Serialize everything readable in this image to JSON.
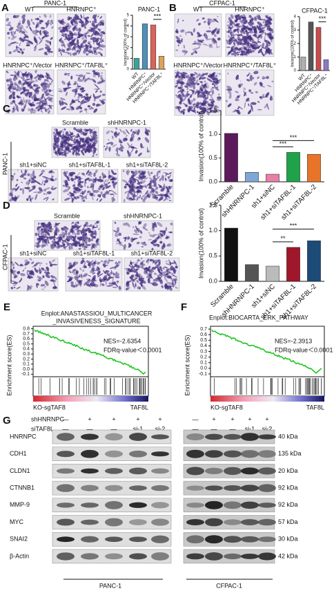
{
  "chart_data": [
    {
      "type": "bar",
      "panel": "A",
      "title": "PANC-1",
      "y_label": "Invasion(100% of control)",
      "categories": [
        "WT",
        "HNRNPC⁺",
        "HNRNPC⁺/Vector",
        "HNRNPC⁺/TAF8L⁺"
      ],
      "values": [
        1.0,
        4.2,
        4.1,
        1.2
      ],
      "colors": [
        "#3aa39a",
        "#4f8fb8",
        "#d9645a",
        "#d9a35a"
      ],
      "ylim": [
        0,
        5
      ],
      "yticks": [
        0,
        1,
        2,
        3,
        4,
        5
      ],
      "annotations": [
        "***"
      ]
    },
    {
      "type": "bar",
      "panel": "B",
      "title": "CFPAC-1",
      "y_label": "Invasion(100% of control)",
      "categories": [
        "WT",
        "HNRNPC⁺",
        "HNRNPC⁺/Vector",
        "HNRNPC⁺/TAF8L⁺"
      ],
      "values": [
        1.0,
        3.6,
        3.2,
        0.8
      ],
      "colors": [
        "#b0b0b0",
        "#555555",
        "#c94b4b",
        "#8a7ac0"
      ],
      "ylim": [
        0,
        4
      ],
      "yticks": [
        0,
        1,
        2,
        3,
        4
      ],
      "annotations": [
        "***"
      ]
    },
    {
      "type": "bar",
      "panel": "C",
      "y_label": "Invasion(100% of control)",
      "categories": [
        "Scramble",
        "shHNRNPC-1",
        "sh1+siNC",
        "sh1+siTAF8L-1",
        "sh1+siTAF8L-2"
      ],
      "values": [
        1.02,
        0.2,
        0.16,
        0.62,
        0.58
      ],
      "colors": [
        "#5c1a5c",
        "#7fa7d6",
        "#e87fa6",
        "#1fa24a",
        "#e8742a"
      ],
      "ylim": [
        0,
        1.5
      ],
      "yticks": [
        {
          "value": 0,
          "label": "0.0"
        },
        0.5,
        {
          "value": 1,
          "label": "1.0"
        },
        1.5
      ],
      "annotations": [
        "***",
        "***"
      ]
    },
    {
      "type": "bar",
      "panel": "D",
      "y_label": "Invasion(100% of control)",
      "categories": [
        "Scramble",
        "shHNRNPC-1",
        "sh1+siNC",
        "sh1+siTAF8L-1",
        "sh1+siTAF8L-2"
      ],
      "values": [
        1.05,
        0.33,
        0.3,
        0.67,
        0.8
      ],
      "colors": [
        "#111111",
        "#555555",
        "#bbbbbb",
        "#a0162a",
        "#1d4b78"
      ],
      "ylim": [
        0,
        1.5
      ],
      "yticks": [
        {
          "value": 0,
          "label": "0.0"
        },
        0.5,
        {
          "value": 1,
          "label": "1.0"
        },
        1.5
      ],
      "annotations": [
        "**",
        "***"
      ]
    }
  ],
  "micrographs": [
    {
      "header": "PANC-1",
      "labels": [
        "WT",
        "HNRNPC⁺",
        "HNRNPC⁺/Vector",
        "HNRNPC⁺/TAF8L⁺"
      ]
    },
    {
      "header": "CFPAC-1",
      "labels": [
        "WT",
        "HNRNPC⁺",
        "HNRNPC⁺/Vector",
        "HNRNPC⁺/TAF8L⁺"
      ]
    },
    {
      "side": "PANC-1",
      "labels": [
        "Scramble",
        "shHNRNPC-1",
        "sh1+siNC",
        "sh1+siTAF8L-1",
        "sh1+siTAF8L-2"
      ]
    },
    {
      "side": "CFPAC-1",
      "labels": [
        "Scramble",
        "shHNRNPC-1",
        "sh1+siNC",
        "sh1+siTAF8L-1",
        "sh1+siTAF8L-2"
      ]
    }
  ],
  "gsea": [
    {
      "panel": "E",
      "title": [
        "Enplot:ANASTASSIOU_MULTICANCER",
        "_INVASIVENESS_SIGNATURE"
      ],
      "nes": "NES=-2.6354",
      "fdr": "FDRq-value＜0.0001",
      "y_label": "Enrichment score(ES)",
      "ylim": [
        -0.15,
        0.85
      ],
      "yticks": [
        0.8,
        0.7,
        0.6,
        0.5,
        0.4,
        0.3,
        0.2,
        0.1,
        {
          "value": 0,
          "label": "0.0"
        },
        -0.1
      ],
      "left": "KO-sgTAF8",
      "right": "TAF8L"
    },
    {
      "panel": "F",
      "title": [
        "Enplot:BIOCARTA_ERK_PATHWAY"
      ],
      "nes": "NES=-2.3913",
      "fdr": "FDRq-value＜0.0001",
      "y_label": "Enrichment score(ES)",
      "ylim": [
        -0.15,
        0.75
      ],
      "yticks": [
        0.7,
        0.6,
        0.5,
        0.4,
        0.3,
        0.2,
        0.1,
        {
          "value": 0,
          "label": "0.0"
        },
        -0.1
      ],
      "left": "KO-sgTAF8",
      "right": "TAF8L"
    }
  ],
  "western": {
    "panel": "G",
    "conditions": [
      {
        "name": "shHNRNPC",
        "lanes": [
          "—",
          "+",
          "+",
          "+",
          "+"
        ]
      },
      {
        "name": "siTAF8L",
        "lanes": [
          "—",
          "—",
          "—",
          "si-1",
          "si-2"
        ]
      }
    ],
    "proteins": [
      "HNRNPC",
      "CDH1",
      "CLDN1",
      "CTNNB1",
      "MMP-9",
      "MYC",
      "SNAI2",
      "β-Actin"
    ],
    "sizes": [
      "40 kDa",
      "135 kDa",
      "20 kDa",
      "92 kDa",
      "92 kDa",
      "57 kDa",
      "30 kDa",
      "42 kDa"
    ],
    "cell_lines": [
      "PANC-1",
      "CFPAC-1"
    ]
  }
}
